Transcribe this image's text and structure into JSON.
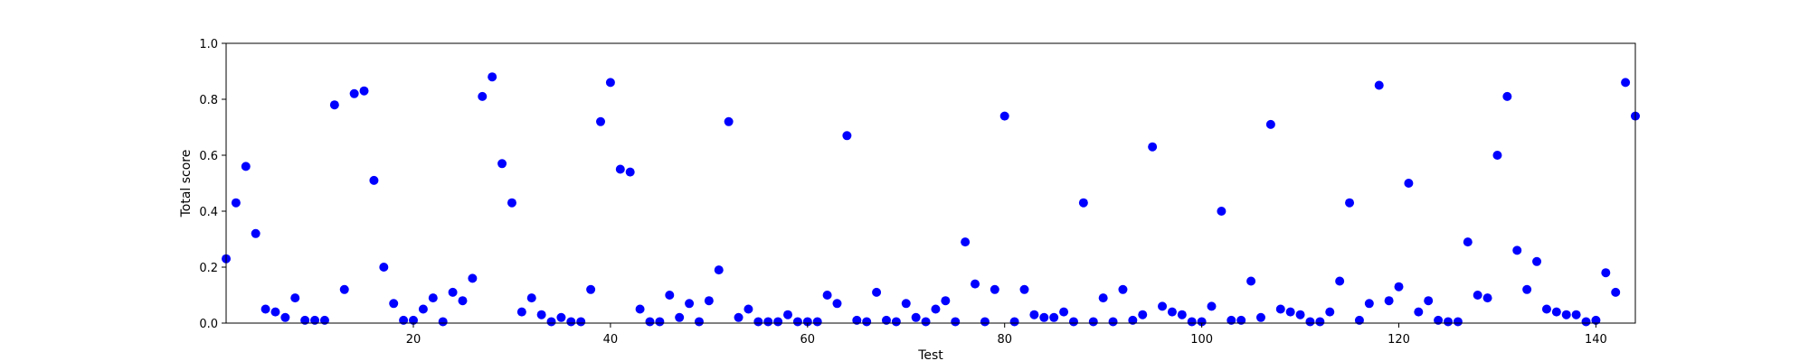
{
  "chart_data": {
    "type": "scatter",
    "title": "",
    "xlabel": "Test",
    "ylabel": "Total score",
    "xlim": [
      1,
      144
    ],
    "ylim": [
      0,
      1.0
    ],
    "grid": false,
    "marker_color": "#0000ff",
    "x_ticks": [
      {
        "value": 20,
        "label": "20"
      },
      {
        "value": 40,
        "label": "40"
      },
      {
        "value": 60,
        "label": "60"
      },
      {
        "value": 80,
        "label": "80"
      },
      {
        "value": 100,
        "label": "100"
      },
      {
        "value": 120,
        "label": "120"
      },
      {
        "value": 140,
        "label": "140"
      }
    ],
    "y_ticks": [
      {
        "value": 0.0,
        "label": "0.0"
      },
      {
        "value": 0.2,
        "label": "0.2"
      },
      {
        "value": 0.4,
        "label": "0.4"
      },
      {
        "value": 0.6,
        "label": "0.6"
      },
      {
        "value": 0.8,
        "label": "0.8"
      },
      {
        "value": 1.0,
        "label": "1.0"
      }
    ],
    "series": [
      {
        "x": [
          1,
          2,
          3,
          4,
          5,
          6,
          7,
          8,
          9,
          10,
          11,
          12,
          13,
          14,
          15,
          16,
          17,
          18,
          19,
          20,
          21,
          22,
          23,
          24,
          25,
          26,
          27,
          28,
          29,
          30,
          31,
          32,
          33,
          34,
          35,
          36,
          37,
          38,
          39,
          40,
          41,
          42,
          43,
          44,
          45,
          46,
          47,
          48,
          49,
          50,
          51,
          52,
          53,
          54,
          55,
          56,
          57,
          58,
          59,
          60,
          61,
          62,
          63,
          64,
          65,
          66,
          67,
          68,
          69,
          70,
          71,
          72,
          73,
          74,
          75,
          76,
          77,
          78,
          79,
          80,
          81,
          82,
          83,
          84,
          85,
          86,
          87,
          88,
          89,
          90,
          91,
          92,
          93,
          94,
          95,
          96,
          97,
          98,
          99,
          100,
          101,
          102,
          103,
          104,
          105,
          106,
          107,
          108,
          109,
          110,
          111,
          112,
          113,
          114,
          115,
          116,
          117,
          118,
          119,
          120,
          121,
          122,
          123,
          124,
          125,
          126,
          127,
          128,
          129,
          130,
          131,
          132,
          133,
          134,
          135,
          136,
          137,
          138,
          139,
          140,
          141,
          142,
          143,
          144
        ],
        "y": [
          0.23,
          0.43,
          0.56,
          0.32,
          0.05,
          0.04,
          0.02,
          0.09,
          0.01,
          0.01,
          0.01,
          0.78,
          0.12,
          0.82,
          0.83,
          0.51,
          0.2,
          0.07,
          0.01,
          0.01,
          0.05,
          0.09,
          0.005,
          0.11,
          0.08,
          0.16,
          0.81,
          0.88,
          0.57,
          0.43,
          0.04,
          0.09,
          0.03,
          0.005,
          0.02,
          0.005,
          0.005,
          0.12,
          0.72,
          0.86,
          0.55,
          0.54,
          0.05,
          0.005,
          0.005,
          0.1,
          0.02,
          0.07,
          0.005,
          0.08,
          0.19,
          0.72,
          0.02,
          0.05,
          0.005,
          0.005,
          0.005,
          0.03,
          0.005,
          0.005,
          0.005,
          0.1,
          0.07,
          0.67,
          0.01,
          0.005,
          0.11,
          0.01,
          0.005,
          0.07,
          0.02,
          0.005,
          0.05,
          0.08,
          0.005,
          0.29,
          0.14,
          0.005,
          0.12,
          0.74,
          0.005,
          0.12,
          0.03,
          0.02,
          0.02,
          0.04,
          0.005,
          0.43,
          0.005,
          0.09,
          0.005,
          0.12,
          0.01,
          0.03,
          0.63,
          0.06,
          0.04,
          0.03,
          0.005,
          0.005,
          0.06,
          0.4,
          0.01,
          0.01,
          0.15,
          0.02,
          0.71,
          0.05,
          0.04,
          0.03,
          0.005,
          0.005,
          0.04,
          0.15,
          0.43,
          0.01,
          0.07,
          0.85,
          0.08,
          0.13,
          0.5,
          0.04,
          0.08,
          0.01,
          0.005,
          0.005,
          0.29,
          0.1,
          0.09,
          0.6,
          0.81,
          0.26,
          0.12,
          0.22,
          0.05,
          0.04,
          0.03,
          0.03,
          0.005,
          0.01,
          0.18,
          0.11,
          0.86,
          0.74
        ]
      }
    ]
  }
}
